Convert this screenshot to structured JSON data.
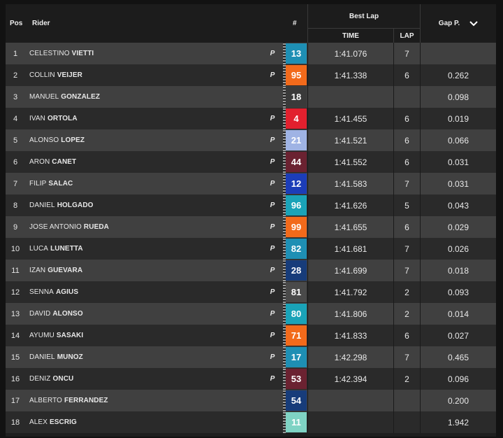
{
  "header": {
    "pos": "Pos",
    "rider": "Rider",
    "number": "#",
    "best_lap": "Best Lap",
    "time": "TIME",
    "lap": "LAP",
    "gap": "Gap P.",
    "gap_icon": "chevron-down-icon"
  },
  "rows": [
    {
      "pos": "1",
      "first": "CELESTINO",
      "last": "VIETTI",
      "p": "P",
      "num": "13",
      "color": "#1e8fb4",
      "time": "1:41.076",
      "lap": "7",
      "gap": ""
    },
    {
      "pos": "2",
      "first": "COLLIN",
      "last": "VEIJER",
      "p": "P",
      "num": "95",
      "color": "#f26a1b",
      "time": "1:41.338",
      "lap": "6",
      "gap": "0.262"
    },
    {
      "pos": "3",
      "first": "MANUEL",
      "last": "GONZALEZ",
      "p": "",
      "num": "18",
      "color": "#3a3a3a",
      "time": "",
      "lap": "",
      "gap": "0.098"
    },
    {
      "pos": "4",
      "first": "IVAN",
      "last": "ORTOLA",
      "p": "P",
      "num": "4",
      "color": "#e2202e",
      "time": "1:41.455",
      "lap": "6",
      "gap": "0.019"
    },
    {
      "pos": "5",
      "first": "ALONSO",
      "last": "LOPEZ",
      "p": "P",
      "num": "21",
      "color": "#9fb3e4",
      "time": "1:41.521",
      "lap": "6",
      "gap": "0.066"
    },
    {
      "pos": "6",
      "first": "ARON",
      "last": "CANET",
      "p": "P",
      "num": "44",
      "color": "#6b2231",
      "time": "1:41.552",
      "lap": "6",
      "gap": "0.031"
    },
    {
      "pos": "7",
      "first": "FILIP",
      "last": "SALAC",
      "p": "P",
      "num": "12",
      "color": "#1c3db8",
      "time": "1:41.583",
      "lap": "7",
      "gap": "0.031"
    },
    {
      "pos": "8",
      "first": "DANIEL",
      "last": "HOLGADO",
      "p": "P",
      "num": "96",
      "color": "#1aa3b8",
      "time": "1:41.626",
      "lap": "5",
      "gap": "0.043"
    },
    {
      "pos": "9",
      "first": "JOSE ANTONIO",
      "last": "RUEDA",
      "p": "P",
      "num": "99",
      "color": "#f26a1b",
      "time": "1:41.655",
      "lap": "6",
      "gap": "0.029"
    },
    {
      "pos": "10",
      "first": "LUCA",
      "last": "LUNETTA",
      "p": "P",
      "num": "82",
      "color": "#1e8fb4",
      "time": "1:41.681",
      "lap": "7",
      "gap": "0.026"
    },
    {
      "pos": "11",
      "first": "IZAN",
      "last": "GUEVARA",
      "p": "P",
      "num": "28",
      "color": "#173c7a",
      "time": "1:41.699",
      "lap": "7",
      "gap": "0.018"
    },
    {
      "pos": "12",
      "first": "SENNA",
      "last": "AGIUS",
      "p": "P",
      "num": "81",
      "color": "#4a4a4a",
      "time": "1:41.792",
      "lap": "2",
      "gap": "0.093"
    },
    {
      "pos": "13",
      "first": "DAVID",
      "last": "ALONSO",
      "p": "P",
      "num": "80",
      "color": "#1aa3b8",
      "time": "1:41.806",
      "lap": "2",
      "gap": "0.014"
    },
    {
      "pos": "14",
      "first": "AYUMU",
      "last": "SASAKI",
      "p": "P",
      "num": "71",
      "color": "#f26a1b",
      "time": "1:41.833",
      "lap": "6",
      "gap": "0.027"
    },
    {
      "pos": "15",
      "first": "DANIEL",
      "last": "MUNOZ",
      "p": "P",
      "num": "17",
      "color": "#1e8fb4",
      "time": "1:42.298",
      "lap": "7",
      "gap": "0.465"
    },
    {
      "pos": "16",
      "first": "DENIZ",
      "last": "ONCU",
      "p": "P",
      "num": "53",
      "color": "#6b2231",
      "time": "1:42.394",
      "lap": "2",
      "gap": "0.096"
    },
    {
      "pos": "17",
      "first": "ALBERTO",
      "last": "FERRANDEZ",
      "p": "",
      "num": "54",
      "color": "#173c7a",
      "time": "",
      "lap": "",
      "gap": "0.200"
    },
    {
      "pos": "18",
      "first": "ALEX",
      "last": "ESCRIG",
      "p": "",
      "num": "11",
      "color": "#7fd3c4",
      "time": "",
      "lap": "",
      "gap": "1.942"
    }
  ]
}
